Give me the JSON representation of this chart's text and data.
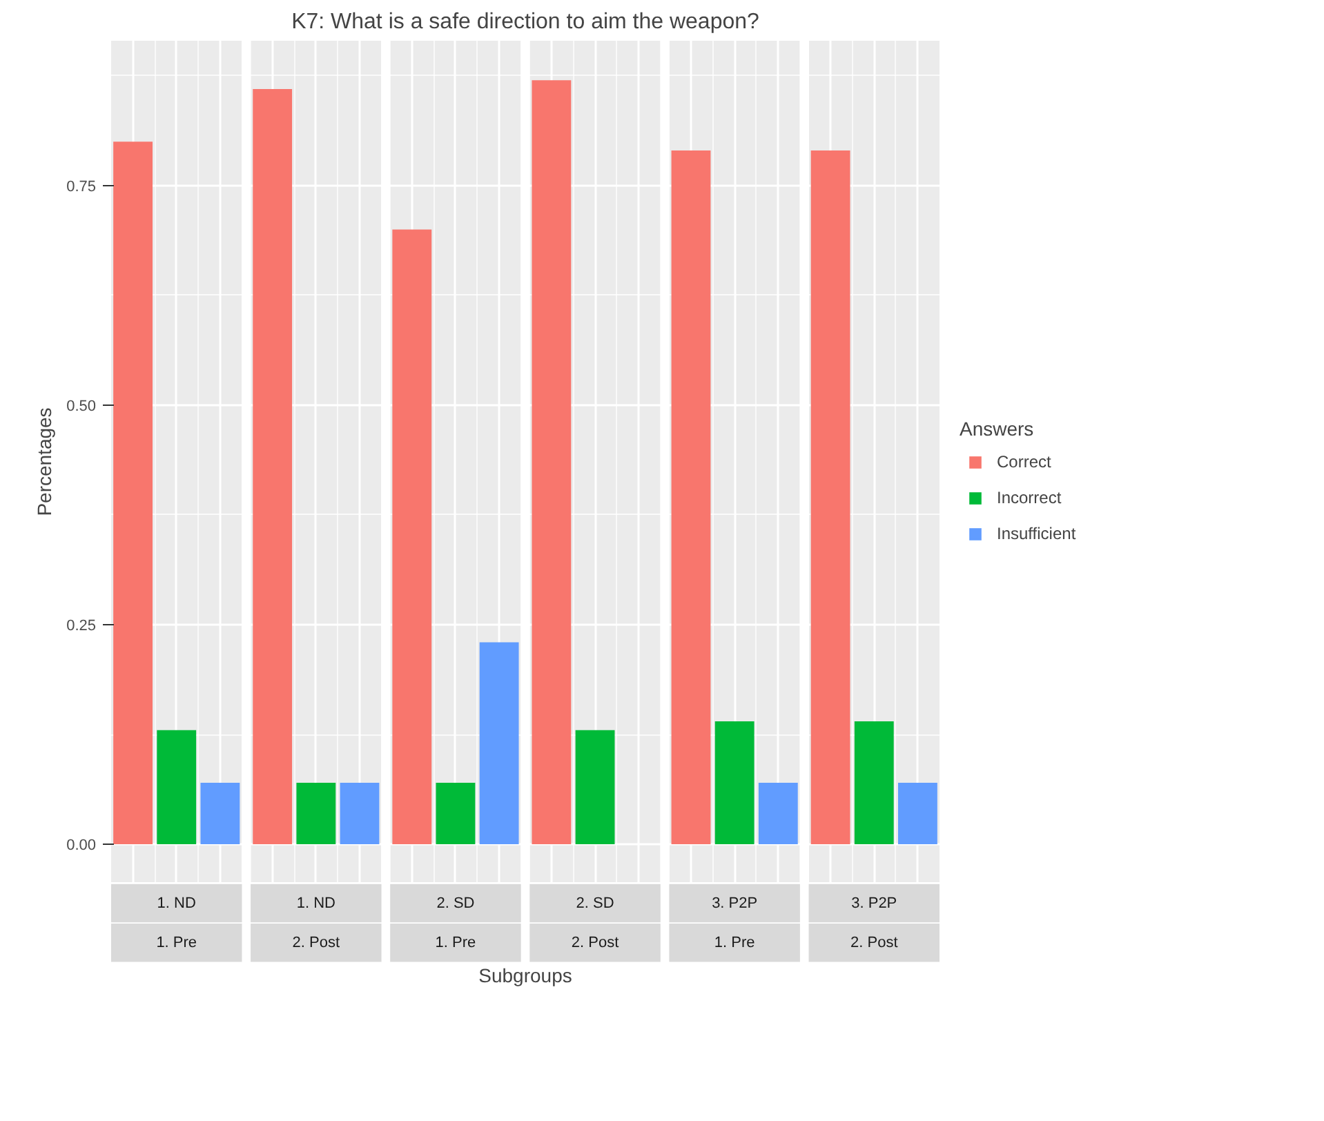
{
  "chart_data": {
    "type": "bar",
    "title": "K7: What is a safe direction to aim the weapon?",
    "xlabel": "Subgroups",
    "ylabel": "Percentages",
    "legend_title": "Answers",
    "categories": [
      "1. ND\n1. Pre",
      "1. ND\n2. Post",
      "2. SD\n1. Pre",
      "2. SD\n2. Post",
      "3. P2P\n1. Pre",
      "3. P2P\n2. Post"
    ],
    "series": [
      {
        "name": "Correct",
        "color": "#f8766d",
        "values": [
          0.8,
          0.86,
          0.7,
          0.87,
          0.79,
          0.79
        ]
      },
      {
        "name": "Incorrect",
        "color": "#00ba38",
        "values": [
          0.13,
          0.07,
          0.07,
          0.13,
          0.14,
          0.14
        ]
      },
      {
        "name": "Insufficient",
        "color": "#619cff",
        "values": [
          0.07,
          0.07,
          0.23,
          null,
          0.07,
          0.07
        ]
      }
    ],
    "ylim": [
      -0.044,
      0.915
    ],
    "yticks": [
      {
        "value": 0,
        "label": "0.00"
      },
      {
        "value": 0.25,
        "label": "0.25"
      },
      {
        "value": 0.5,
        "label": "0.50"
      },
      {
        "value": 0.75,
        "label": "0.75"
      }
    ],
    "grid": true,
    "legend": "right"
  }
}
